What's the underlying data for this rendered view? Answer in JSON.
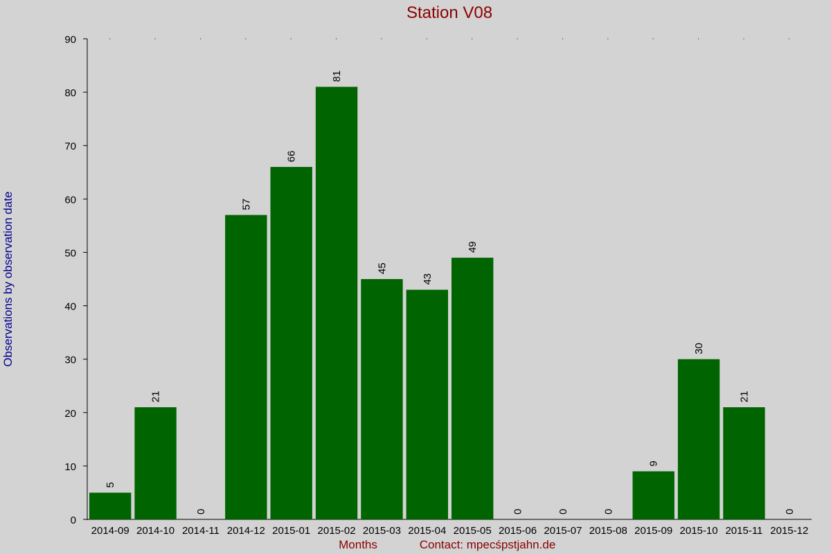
{
  "chart_data": {
    "type": "bar",
    "title": "Station V08",
    "xlabel": "Months",
    "ylabel": "Observations by observation date",
    "contact": "Contact: mpecśpstjahn.de",
    "categories": [
      "2014-09",
      "2014-10",
      "2014-11",
      "2014-12",
      "2015-01",
      "2015-02",
      "2015-03",
      "2015-04",
      "2015-05",
      "2015-06",
      "2015-07",
      "2015-08",
      "2015-09",
      "2015-10",
      "2015-11",
      "2015-12"
    ],
    "values": [
      5,
      21,
      0,
      57,
      66,
      81,
      45,
      43,
      49,
      0,
      0,
      0,
      9,
      30,
      21,
      0
    ],
    "ylim": [
      0,
      90
    ],
    "yticks": [
      0,
      10,
      20,
      30,
      40,
      50,
      60,
      70,
      80,
      90
    ],
    "grid": "dotted at top",
    "colors": {
      "bar": "#006400",
      "background": "#d3d3d3",
      "title": "#8b0000",
      "ylabel": "#00008b",
      "text": "#000000"
    }
  }
}
